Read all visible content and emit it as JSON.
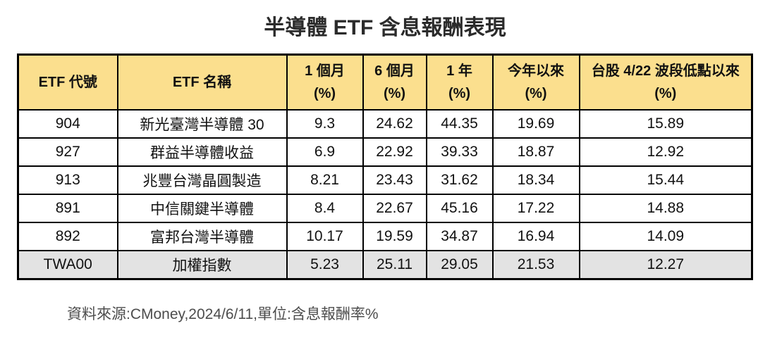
{
  "chart_data": {
    "type": "table",
    "title": "半導體 ETF 含息報酬表現",
    "columns": [
      {
        "key": "etf_code",
        "label": "ETF 代號",
        "unit": ""
      },
      {
        "key": "etf_name",
        "label": "ETF 名稱",
        "unit": ""
      },
      {
        "key": "one_month",
        "label": "1 個月",
        "unit": "(%)"
      },
      {
        "key": "six_month",
        "label": "6 個月",
        "unit": "(%)"
      },
      {
        "key": "one_year",
        "label": "1 年",
        "unit": "(%)"
      },
      {
        "key": "ytd",
        "label": "今年以來",
        "unit": "(%)"
      },
      {
        "key": "since_low_422",
        "label": "台股 4/22 波段低點以來",
        "unit": "(%)"
      }
    ],
    "rows": [
      {
        "etf_code": "904",
        "etf_name": "新光臺灣半導體 30",
        "one_month": "9.3",
        "six_month": "24.62",
        "one_year": "44.35",
        "ytd": "19.69",
        "since_low_422": "15.89",
        "is_index_row": false
      },
      {
        "etf_code": "927",
        "etf_name": "群益半導體收益",
        "one_month": "6.9",
        "six_month": "22.92",
        "one_year": "39.33",
        "ytd": "18.87",
        "since_low_422": "12.92",
        "is_index_row": false
      },
      {
        "etf_code": "913",
        "etf_name": "兆豐台灣晶圓製造",
        "one_month": "8.21",
        "six_month": "23.43",
        "one_year": "31.62",
        "ytd": "18.34",
        "since_low_422": "15.44",
        "is_index_row": false
      },
      {
        "etf_code": "891",
        "etf_name": "中信關鍵半導體",
        "one_month": "8.4",
        "six_month": "22.67",
        "one_year": "45.16",
        "ytd": "17.22",
        "since_low_422": "14.88",
        "is_index_row": false
      },
      {
        "etf_code": "892",
        "etf_name": "富邦台灣半導體",
        "one_month": "10.17",
        "six_month": "19.59",
        "one_year": "34.87",
        "ytd": "16.94",
        "since_low_422": "14.09",
        "is_index_row": false
      },
      {
        "etf_code": "TWA00",
        "etf_name": "加權指數",
        "one_month": "5.23",
        "six_month": "25.11",
        "one_year": "29.05",
        "ytd": "21.53",
        "since_low_422": "12.27",
        "is_index_row": true
      }
    ],
    "layout_hints": {
      "header_two_line_units": true,
      "index_row_highlighted": true
    }
  },
  "footer": {
    "source_note": "資料來源:CMoney,2024/6/11,單位:含息報酬率%"
  },
  "colors": {
    "header_bg": "#FBDF8E",
    "index_row_bg": "#E3E3E3",
    "border": "#000000",
    "footer_text": "#4D4D4D"
  }
}
